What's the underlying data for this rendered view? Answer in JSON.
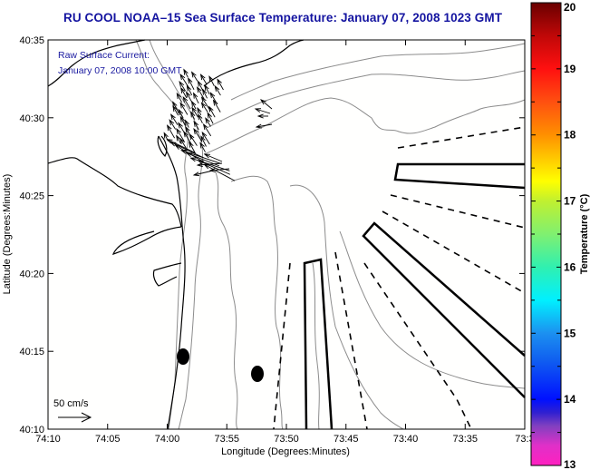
{
  "title": "RU COOL  NOAA–15  Sea Surface Temperature:  January 07, 2008 1023 GMT",
  "overlay": {
    "line1": "Raw Surface Current:",
    "line2": "January 07, 2008 10:00 GMT"
  },
  "scale_arrow": {
    "label": "50 cm/s"
  },
  "axes": {
    "xlabel": "Longitude (Degrees:Minutes)",
    "ylabel": "Latitude (Degrees:Minutes)",
    "xticks": [
      "74:10",
      "74:05",
      "74:00",
      "73:55",
      "73:50",
      "73:45",
      "73:40",
      "73:35",
      "73:3"
    ],
    "yticks": [
      "40:35",
      "40:30",
      "40:25",
      "40:20",
      "40:15",
      "40:10"
    ]
  },
  "colorbar": {
    "label": "Temperature (°C)",
    "min": 13,
    "max": 20,
    "ticks": [
      "20",
      "19",
      "18",
      "17",
      "16",
      "15",
      "14",
      "13"
    ],
    "stops": [
      {
        "t": 13.0,
        "color": "#ff20c0"
      },
      {
        "t": 13.3,
        "color": "#e030c8"
      },
      {
        "t": 13.6,
        "color": "#8040c0"
      },
      {
        "t": 13.8,
        "color": "#3020d0"
      },
      {
        "t": 14.0,
        "color": "#0010ff"
      },
      {
        "t": 14.6,
        "color": "#1060f0"
      },
      {
        "t": 15.0,
        "color": "#1c90f0"
      },
      {
        "t": 15.5,
        "color": "#00f0ff"
      },
      {
        "t": 16.0,
        "color": "#30f0b0"
      },
      {
        "t": 16.5,
        "color": "#80f070"
      },
      {
        "t": 17.0,
        "color": "#c0f030"
      },
      {
        "t": 17.3,
        "color": "#ffff00"
      },
      {
        "t": 17.7,
        "color": "#ffc000"
      },
      {
        "t": 18.0,
        "color": "#ff9000"
      },
      {
        "t": 18.5,
        "color": "#ff5010"
      },
      {
        "t": 19.0,
        "color": "#ff1010"
      },
      {
        "t": 19.5,
        "color": "#c00808"
      },
      {
        "t": 20.0,
        "color": "#6a0000"
      }
    ]
  },
  "chart_data": {
    "type": "map",
    "title": "RU COOL  NOAA-15  Sea Surface Temperature:  January 07, 2008 1023 GMT",
    "xlabel": "Longitude (Degrees:Minutes)",
    "ylabel": "Latitude (Degrees:Minutes)",
    "xlim": [
      "74:10",
      "73:30"
    ],
    "ylim": [
      "40:10",
      "40:35"
    ],
    "colorbar_range": [
      13,
      20
    ],
    "colorbar_label": "Temperature (°C)",
    "annotations": [
      "Raw Surface Current:",
      "January 07, 2008 10:00 GMT",
      "50 cm/s"
    ]
  }
}
